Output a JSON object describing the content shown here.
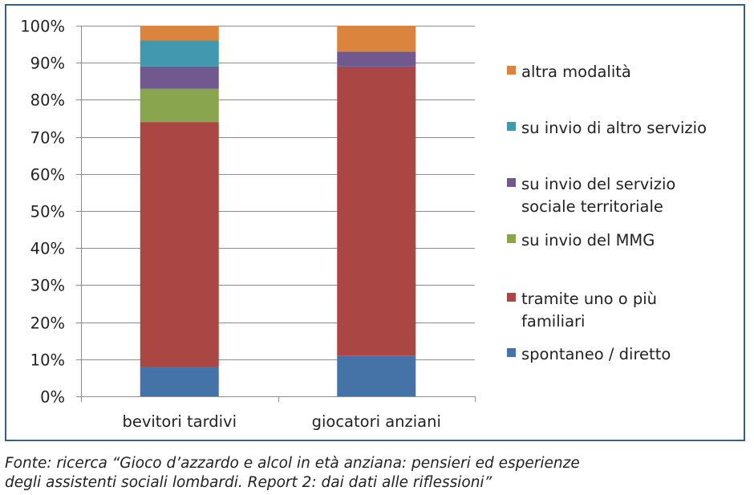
{
  "chart_data": {
    "type": "bar",
    "stacked": true,
    "normalized": true,
    "categories": [
      "bevitori tardivi",
      "giocatori anziani"
    ],
    "series": [
      {
        "name": "spontaneo / diretto",
        "color": "#4572a7",
        "values": [
          8,
          11
        ]
      },
      {
        "name": "tramite uno o più familiari",
        "color": "#aa4643",
        "values": [
          66,
          78
        ]
      },
      {
        "name": "su invio del MMG",
        "color": "#89a54e",
        "values": [
          9,
          0
        ]
      },
      {
        "name": "su invio del servizio sociale territoriale",
        "color": "#71588f",
        "values": [
          6,
          4
        ]
      },
      {
        "name": "su invio di altro servizio",
        "color": "#4198af",
        "values": [
          7,
          0
        ]
      },
      {
        "name": "altra modalità",
        "color": "#db843d",
        "values": [
          4,
          7
        ]
      }
    ],
    "yticks": [
      "0%",
      "10%",
      "20%",
      "30%",
      "40%",
      "50%",
      "60%",
      "70%",
      "80%",
      "90%",
      "100%"
    ],
    "ylim": [
      0,
      100
    ],
    "grid": true,
    "legend": "right",
    "legend_lines": [
      [
        "altra modalità"
      ],
      [
        "su invio di altro servizio"
      ],
      [
        "su invio del servizio",
        "sociale territoriale"
      ],
      [
        "su invio del MMG"
      ],
      [
        "tramite uno o più",
        "familiari"
      ],
      [
        "spontaneo / diretto"
      ]
    ]
  },
  "caption": {
    "line1": "Fonte: ricerca “Gioco d’azzardo e alcol in età anziana: pensieri ed esperienze",
    "line2": "degli assistenti sociali lombardi. Report 2: dai dati alle riflessioni”"
  }
}
